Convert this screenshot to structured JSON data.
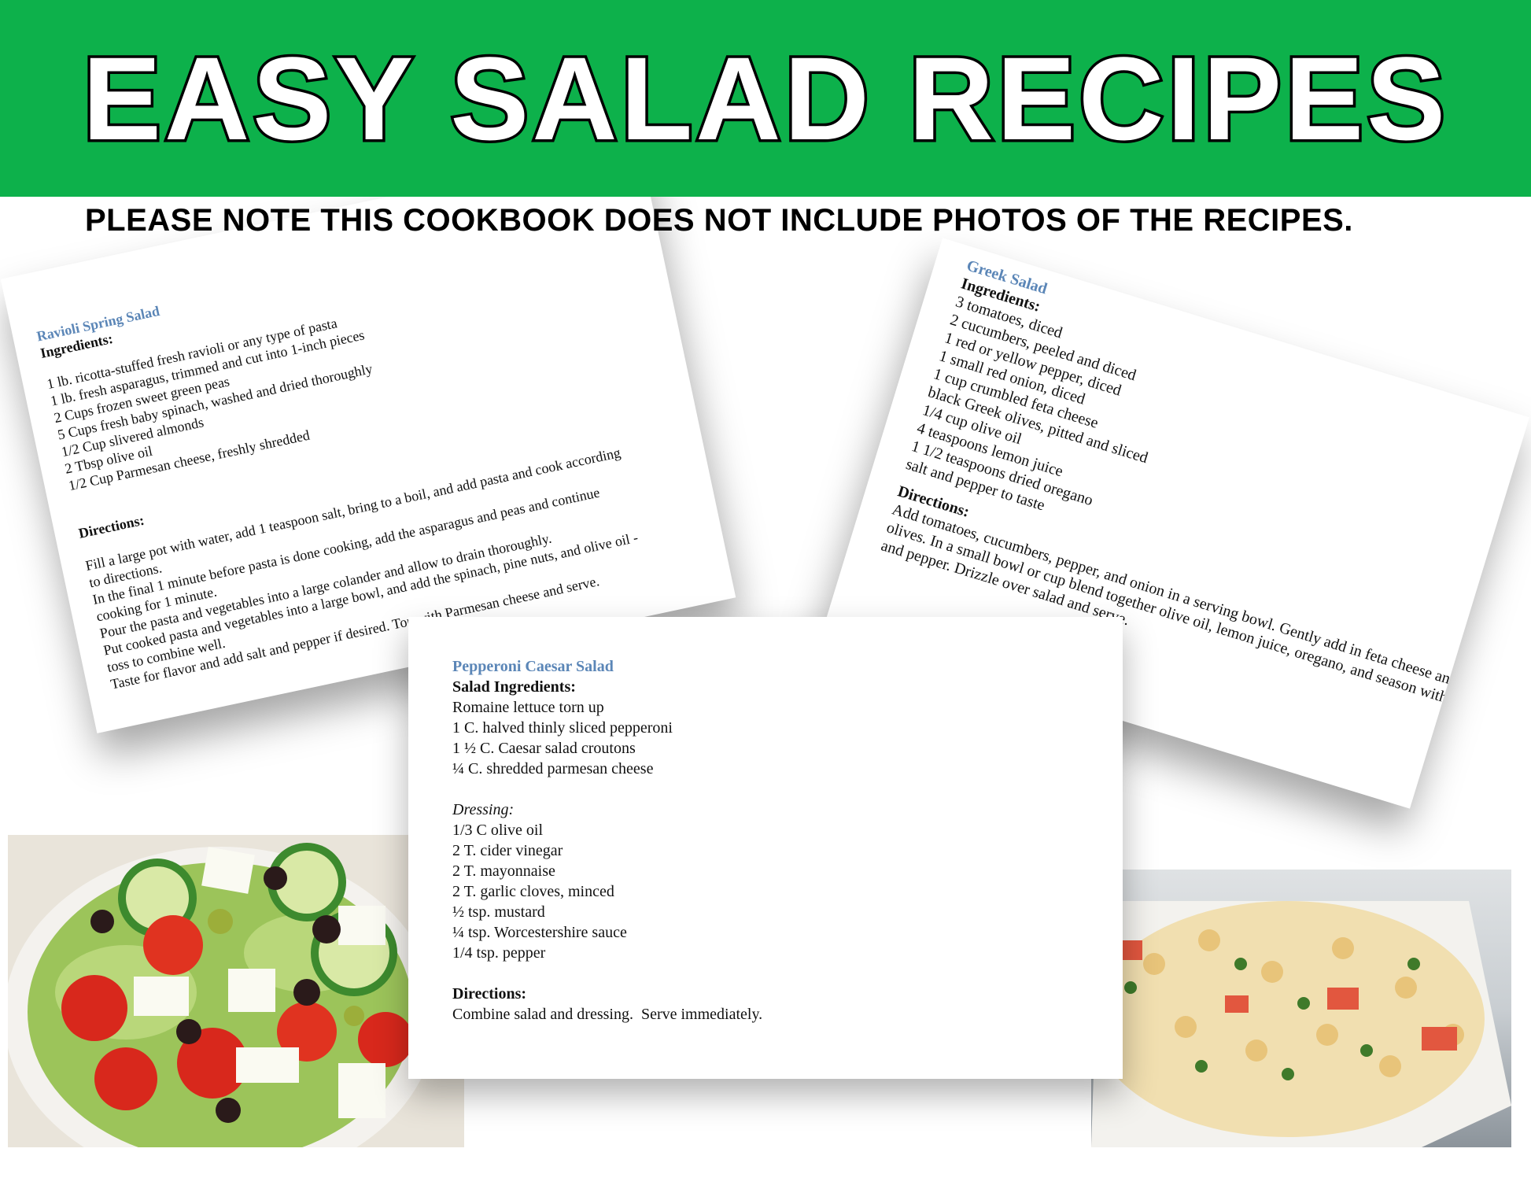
{
  "header": {
    "title": "EASY SALAD RECIPES",
    "note": "PLEASE NOTE THIS COOKBOOK DOES NOT INCLUDE PHOTOS OF THE RECIPES."
  },
  "colors": {
    "header_bg": "#0db14b",
    "recipe_title": "#5b86b7"
  },
  "ravioli": {
    "title": "Ravioli Spring Salad",
    "ingredients_label": "Ingredients:",
    "ingredients": [
      "1 lb. ricotta-stuffed fresh ravioli or any type of pasta",
      "1 lb. fresh asparagus, trimmed and cut into 1-inch pieces",
      "2 Cups frozen sweet green peas",
      "5 Cups fresh baby spinach, washed and dried thoroughly",
      "1/2 Cup slivered almonds",
      "2 Tbsp olive oil",
      "1/2 Cup Parmesan cheese, freshly shredded"
    ],
    "directions_label": "Directions:",
    "directions": [
      "Fill a large pot with water, add 1 teaspoon salt, bring to a boil, and add pasta and cook according",
      "to directions.",
      "In the final 1 minute before pasta is done cooking, add the asparagus and peas and continue",
      "cooking for 1 minute.",
      "Pour the pasta and vegetables into a large colander and allow to drain thoroughly.",
      "Put cooked pasta and vegetables into a large bowl, and add the spinach, pine nuts, and olive oil -",
      "toss to combine well.",
      "Taste for flavor and add salt and pepper if desired. Top with Parmesan cheese and serve."
    ]
  },
  "greek": {
    "title": "Greek Salad",
    "ingredients_label": "Ingredients:",
    "ingredients": [
      "3 tomatoes, diced",
      "2 cucumbers, peeled and diced",
      "1 red or yellow pepper, diced",
      "1 small red onion, diced",
      "1 cup crumbled feta cheese",
      "black Greek olives, pitted and sliced",
      "1/4 cup olive oil",
      "4 teaspoons lemon juice",
      "1 1/2 teaspoons dried oregano",
      "salt and pepper to taste"
    ],
    "directions_label": "Directions:",
    "directions": [
      "Add tomatoes, cucumbers, pepper, and onion in a serving bowl. Gently add in feta cheese and",
      "olives. In a small bowl or cup blend together olive oil, lemon juice, oregano, and season with salt",
      "and pepper. Drizzle over salad and serve."
    ]
  },
  "caesar": {
    "title": "Pepperoni Caesar Salad",
    "ingredients_label": "Salad Ingredients:",
    "ingredients": [
      "Romaine lettuce torn up",
      "1 C. halved thinly sliced pepperoni",
      "1 ½ C. Caesar salad croutons",
      "¼ C. shredded parmesan cheese"
    ],
    "dressing_label": "Dressing:",
    "dressing": [
      "1/3 C olive oil",
      "2 T. cider vinegar",
      "2 T. mayonnaise",
      "2 T. garlic cloves, minced",
      "½ tsp. mustard",
      "¼ tsp. Worcestershire sauce",
      "1/4 tsp. pepper"
    ],
    "directions_label": "Directions:",
    "directions": "Combine salad and dressing.  Serve immediately."
  },
  "photos": {
    "left": "greek-salad-photo",
    "right": "pasta-salad-photo"
  }
}
